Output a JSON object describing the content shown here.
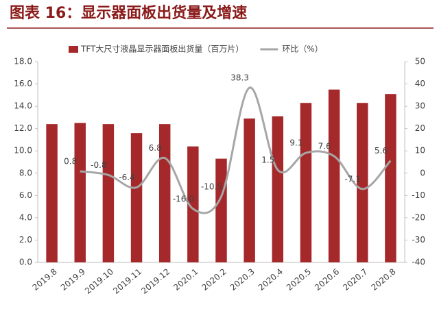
{
  "chart_data": {
    "type": "bar-line",
    "title": "图表 16：显示器面板出货量及增速",
    "categories": [
      "2019.8",
      "2019.9",
      "2019.10",
      "2019.11",
      "2019.12",
      "2020.1",
      "2020.2",
      "2020.3",
      "2020.4",
      "2020.5",
      "2020.6",
      "2020.7",
      "2020.8"
    ],
    "series": [
      {
        "name": "TFT大尺寸液晶显示器面板出货量（百万片）",
        "type": "bar",
        "color": "#a5292a",
        "values": [
          12.4,
          12.5,
          12.4,
          11.6,
          12.4,
          10.4,
          9.3,
          12.9,
          13.1,
          14.3,
          15.5,
          14.3,
          15.1
        ]
      },
      {
        "name": "环比（%）",
        "type": "line",
        "axis": "y2",
        "color": "#a6a6a6",
        "values": [
          null,
          0.8,
          -0.8,
          -6.4,
          6.8,
          -16.0,
          -10.5,
          38.3,
          1.5,
          9.1,
          7.6,
          -7.1,
          5.6
        ],
        "value_labels": [
          null,
          "0.8",
          "-0.8",
          "-6.4",
          "6.8",
          "-16.0",
          "-10.5",
          "38.3",
          "1.5",
          "9.1",
          "7.6",
          "-7.1",
          "5.6"
        ]
      }
    ],
    "ylim": [
      0,
      18
    ],
    "yticks": [
      {
        "value": 0,
        "label": "0.0"
      },
      {
        "value": 2,
        "label": "2.0"
      },
      {
        "value": 4,
        "label": "4.0"
      },
      {
        "value": 6,
        "label": "6.0"
      },
      {
        "value": 8,
        "label": "8.0"
      },
      {
        "value": 10,
        "label": "10.0"
      },
      {
        "value": 12,
        "label": "12.0"
      },
      {
        "value": 14,
        "label": "14.0"
      },
      {
        "value": 16,
        "label": "16.0"
      },
      {
        "value": 18,
        "label": "18.0"
      }
    ],
    "y2lim": [
      -40,
      50
    ],
    "y2ticks": [
      -40,
      -30,
      -20,
      -10,
      0,
      10,
      20,
      30,
      40,
      50
    ],
    "legend": "top"
  }
}
